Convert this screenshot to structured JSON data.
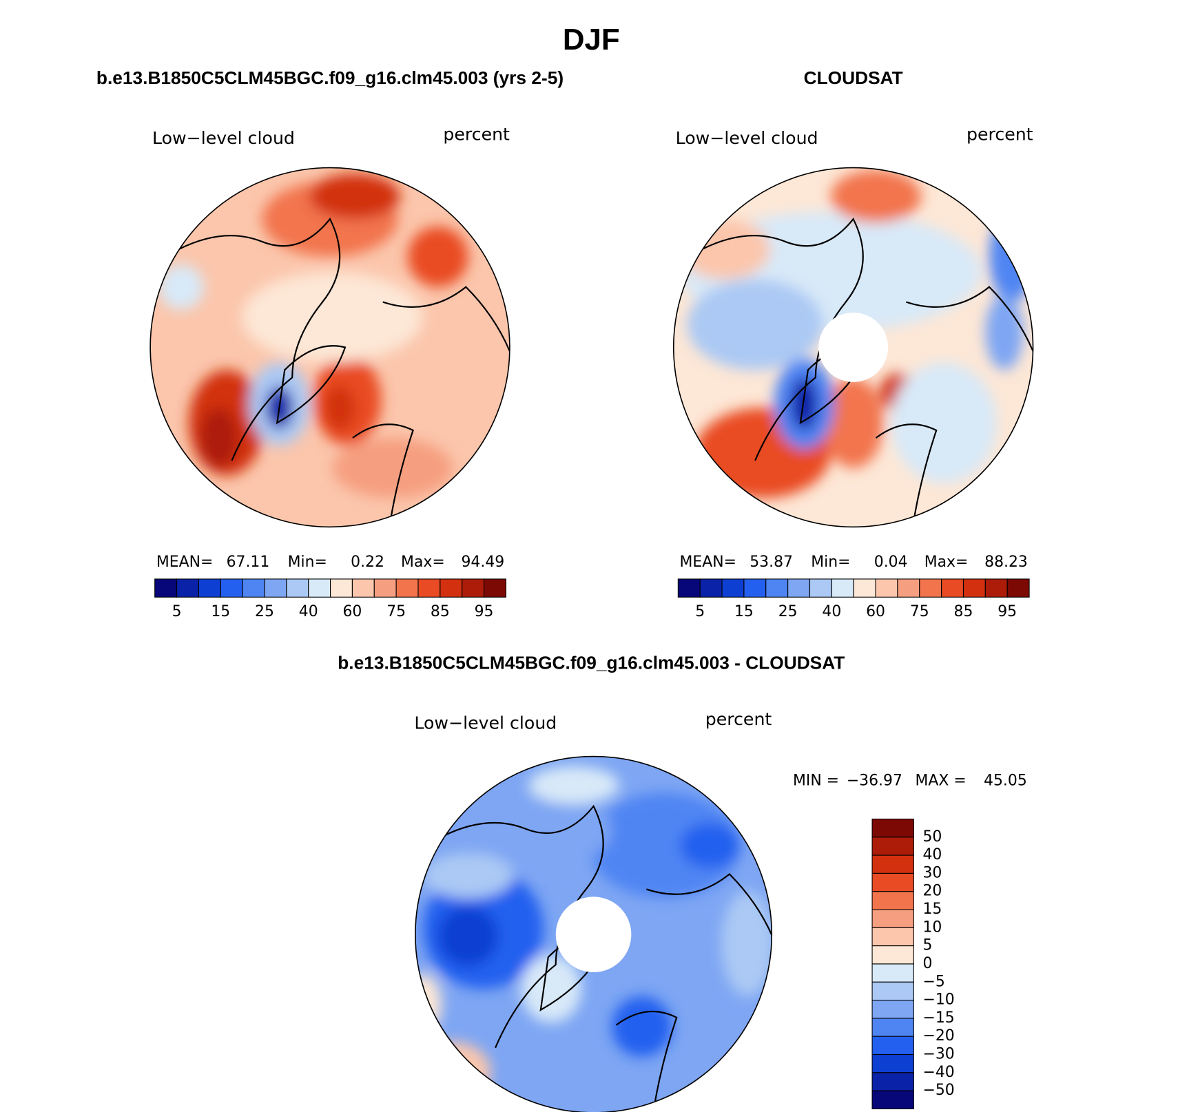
{
  "title": "DJF",
  "panels": [
    {
      "title": "b.e13.B1850C5CLM45BGC.f09_g16.clm45.003 (yrs 2-5)",
      "left_label": "Low−level cloud",
      "right_label": "percent",
      "stats": [
        {
          "label": "MEAN=",
          "value": "67.11"
        },
        {
          "label": "Min=",
          "value": "0.22"
        },
        {
          "label": "Max=",
          "value": "94.49"
        }
      ],
      "colorbar": {
        "labels": [
          "5",
          "15",
          "25",
          "40",
          "60",
          "75",
          "85",
          "95"
        ],
        "colors": [
          "#07077a",
          "#0a22a8",
          "#0d3fd2",
          "#2460ef",
          "#4f85f3",
          "#7ea6f3",
          "#abc9f4",
          "#d8e9f8",
          "#fde7d6",
          "#fbc6ac",
          "#f69f80",
          "#f2744d",
          "#e94b24",
          "#d2300f",
          "#ad1c09",
          "#7d0905"
        ]
      }
    },
    {
      "title": "CLOUDSAT",
      "left_label": "Low−level cloud",
      "right_label": "percent",
      "stats": [
        {
          "label": "MEAN=",
          "value": "53.87"
        },
        {
          "label": "Min=",
          "value": "0.04"
        },
        {
          "label": "Max=",
          "value": "88.23"
        }
      ],
      "colorbar": {
        "labels": [
          "5",
          "15",
          "25",
          "40",
          "60",
          "75",
          "85",
          "95"
        ],
        "colors": [
          "#07077a",
          "#0a22a8",
          "#0d3fd2",
          "#2460ef",
          "#4f85f3",
          "#7ea6f3",
          "#abc9f4",
          "#d8e9f8",
          "#fde7d6",
          "#fbc6ac",
          "#f69f80",
          "#f2744d",
          "#e94b24",
          "#d2300f",
          "#ad1c09",
          "#7d0905"
        ]
      }
    },
    {
      "title": "b.e13.B1850C5CLM45BGC.f09_g16.clm45.003 - CLOUDSAT",
      "left_label": "Low−level cloud",
      "right_label": "percent",
      "stats": [
        {
          "label": "MIN =",
          "value": "−36.97"
        },
        {
          "label": "MAX =",
          "value": "45.05"
        }
      ],
      "colorbar": {
        "labels": [
          "50",
          "40",
          "30",
          "20",
          "15",
          "10",
          "5",
          "0",
          "−5",
          "−10",
          "−15",
          "−20",
          "−30",
          "−40",
          "−50"
        ],
        "colors": [
          "#7d0905",
          "#ad1c09",
          "#d2300f",
          "#e94b24",
          "#f2744d",
          "#f69f80",
          "#fbc6ac",
          "#fde7d6",
          "#d8e9f8",
          "#abc9f4",
          "#7ea6f3",
          "#4f85f3",
          "#2460ef",
          "#0d3fd2",
          "#0a22a8",
          "#07077a"
        ]
      }
    }
  ]
}
